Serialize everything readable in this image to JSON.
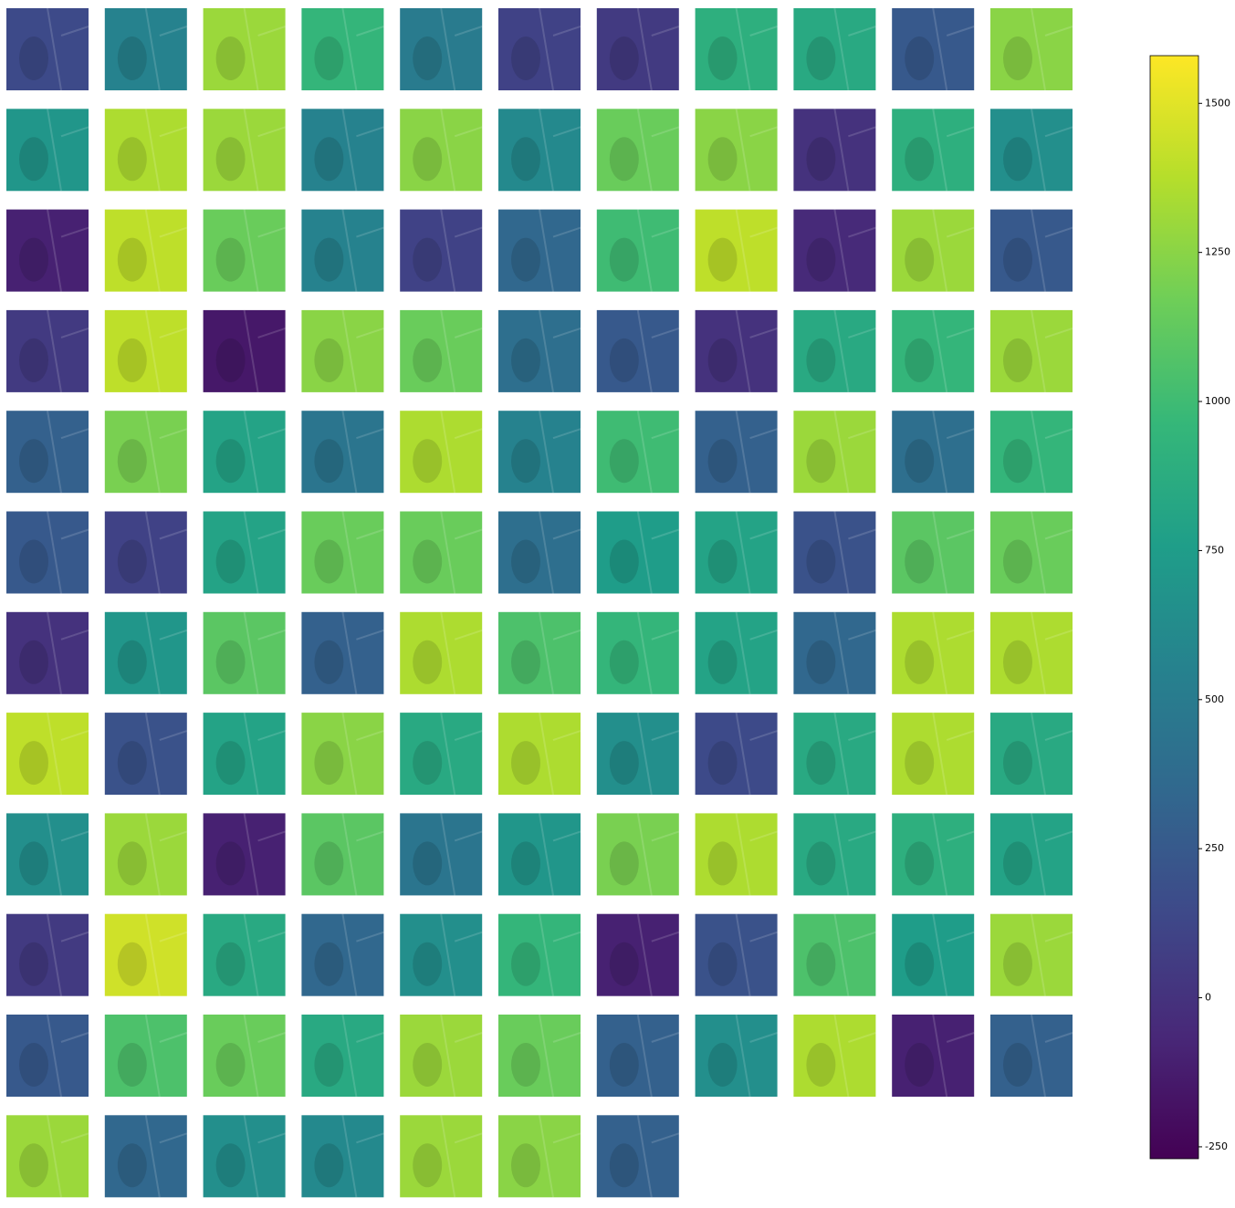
{
  "chart_data": {
    "type": "image_grid",
    "colormap": "viridis",
    "columns": 11,
    "values": [
      150,
      550,
      1300,
      950,
      500,
      100,
      50,
      900,
      850,
      250,
      1250,
      700,
      1350,
      1300,
      550,
      1250,
      600,
      1150,
      1250,
      0,
      900,
      650,
      -100,
      1400,
      1150,
      550,
      100,
      350,
      1000,
      1400,
      -50,
      1300,
      250,
      50,
      1400,
      -150,
      1250,
      1150,
      400,
      250,
      0,
      850,
      950,
      1300,
      300,
      1200,
      800,
      450,
      1350,
      550,
      1000,
      300,
      1300,
      400,
      950,
      250,
      100,
      800,
      1150,
      1150,
      400,
      750,
      800,
      200,
      1100,
      1150,
      0,
      700,
      1100,
      300,
      1350,
      1050,
      950,
      800,
      350,
      1350,
      1350,
      1400,
      200,
      800,
      1250,
      850,
      1350,
      650,
      150,
      850,
      1350,
      850,
      650,
      1300,
      -100,
      1100,
      450,
      700,
      1200,
      1350,
      850,
      900,
      800,
      50,
      1450,
      850,
      350,
      650,
      950,
      -100,
      200,
      1050,
      750,
      1300,
      250,
      1050,
      1150,
      850,
      1300,
      1150,
      300,
      650,
      1350,
      -100,
      300,
      1300,
      350,
      650,
      600,
      1300,
      1250,
      300
    ],
    "clim": [
      -270,
      1580
    ],
    "cticks": [
      -250,
      0,
      250,
      500,
      750,
      1000,
      1250,
      1500
    ]
  }
}
